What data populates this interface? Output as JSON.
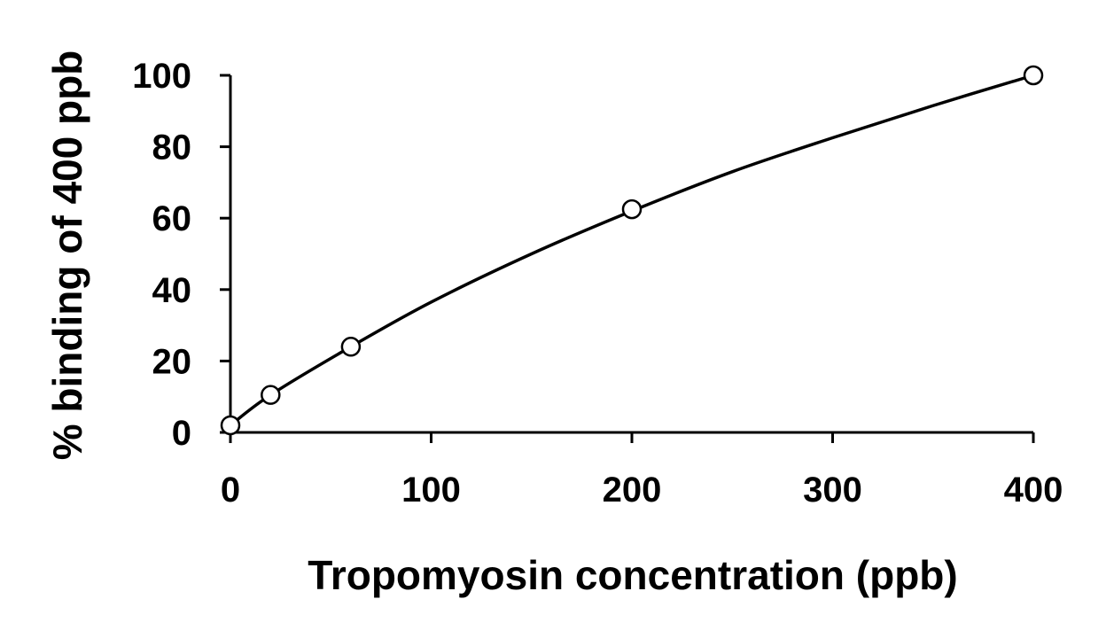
{
  "chart_data": {
    "type": "scatter",
    "title": "",
    "xlabel": "Tropomyosin concentration (ppb)",
    "ylabel": "% binding of 400 ppb",
    "xlim": [
      0,
      400
    ],
    "ylim": [
      0,
      100
    ],
    "x_ticks": [
      0,
      100,
      200,
      300,
      400
    ],
    "y_ticks": [
      0,
      20,
      40,
      60,
      80,
      100
    ],
    "grid": false,
    "legend": "none",
    "series": [
      {
        "marker": "open-circle",
        "x": [
          0,
          20,
          60,
          200,
          400
        ],
        "y": [
          2,
          10.5,
          24,
          62.5,
          100
        ]
      }
    ],
    "trendline": {
      "kind": "smooth fit",
      "x": [
        0,
        20,
        60,
        100,
        150,
        200,
        250,
        300,
        350,
        400
      ],
      "y": [
        2,
        10.5,
        24,
        36.5,
        50,
        62,
        73,
        82.5,
        91.5,
        100
      ]
    },
    "colors": {
      "line": "#000000",
      "marker_fill": "#ffffff",
      "background": "#ffffff"
    }
  }
}
